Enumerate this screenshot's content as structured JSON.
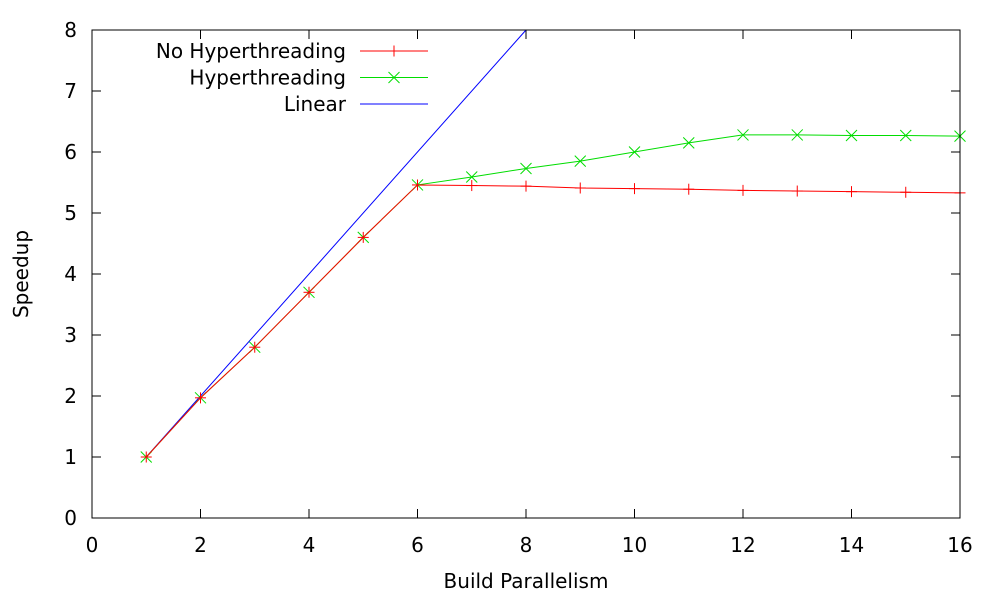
{
  "chart_data": {
    "type": "line",
    "xlabel": "Build Parallelism",
    "ylabel": "Speedup",
    "xlim": [
      0,
      16
    ],
    "ylim": [
      0,
      8
    ],
    "xticks": [
      0,
      2,
      4,
      6,
      8,
      10,
      12,
      14,
      16
    ],
    "yticks": [
      0,
      1,
      2,
      3,
      4,
      5,
      6,
      7,
      8
    ],
    "grid": false,
    "legend_position": "top-left",
    "series": [
      {
        "name": "No Hyperthreading",
        "color": "#ff0000",
        "marker": "plus",
        "x": [
          1,
          2,
          3,
          4,
          5,
          6,
          7,
          8,
          9,
          10,
          11,
          12,
          13,
          14,
          15,
          16
        ],
        "y": [
          1.0,
          1.97,
          2.8,
          3.7,
          4.6,
          5.46,
          5.45,
          5.44,
          5.41,
          5.4,
          5.39,
          5.37,
          5.36,
          5.35,
          5.34,
          5.33
        ]
      },
      {
        "name": "Hyperthreading",
        "color": "#00dd00",
        "marker": "cross",
        "x": [
          1,
          2,
          3,
          4,
          5,
          6,
          7,
          8,
          9,
          10,
          11,
          12,
          13,
          14,
          15,
          16
        ],
        "y": [
          1.0,
          1.97,
          2.8,
          3.7,
          4.6,
          5.46,
          5.59,
          5.73,
          5.85,
          6.0,
          6.15,
          6.28,
          6.28,
          6.27,
          6.27,
          6.26
        ]
      },
      {
        "name": "Linear",
        "color": "#0000ff",
        "marker": "none",
        "x": [
          1,
          8
        ],
        "y": [
          1,
          8
        ]
      }
    ]
  }
}
